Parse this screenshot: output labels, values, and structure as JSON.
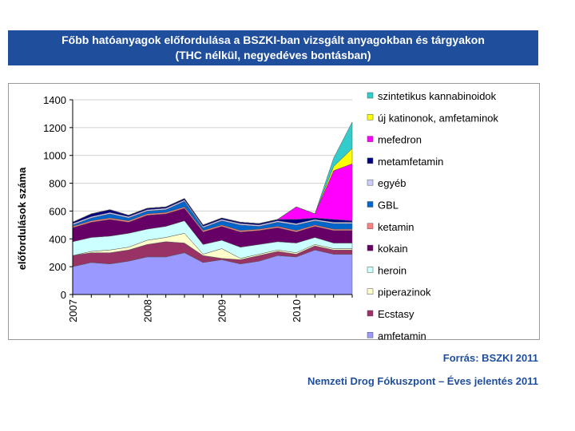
{
  "header": {
    "title_line1": "Főbb hatóanyagok előfordulása a BSZKI-ban vizsgált anyagokban és tárgyakon",
    "title_line2": "(THC nélkül, negyedéves bontásban)"
  },
  "footer": {
    "source_line1": "Forrás: BSZKI 2011",
    "source_line2": "Nemzeti Drog Fókuszpont – Éves jelentés 2011"
  },
  "chart_data": {
    "type": "area",
    "stacked": true,
    "title": "Főbb hatóanyagok előfordulása a BSZKI-ban vizsgált anyagokban és tárgyakon",
    "subtitle": "(THC nélkül, negyedéves bontásban)",
    "xlabel": "",
    "ylabel": "előfordulások száma",
    "ylim": [
      0,
      1400
    ],
    "yticks": [
      0,
      200,
      400,
      600,
      800,
      1000,
      1200,
      1400
    ],
    "x": [
      "2007 Q1",
      "2007 Q2",
      "2007 Q3",
      "2007 Q4",
      "2008 Q1",
      "2008 Q2",
      "2008 Q3",
      "2008 Q4",
      "2009 Q1",
      "2009 Q2",
      "2009 Q3",
      "2009 Q4",
      "2010 Q1",
      "2010 Q2",
      "2010 Q3",
      "2010 Q4"
    ],
    "year_labels": [
      {
        "label": "2007",
        "index": 0
      },
      {
        "label": "2008",
        "index": 4
      },
      {
        "label": "2009",
        "index": 8
      },
      {
        "label": "2010",
        "index": 12
      }
    ],
    "legend_position": "right",
    "series": [
      {
        "name": "amfetamin",
        "color": "#9999ff",
        "values": [
          200,
          230,
          220,
          240,
          270,
          270,
          300,
          230,
          250,
          220,
          240,
          280,
          270,
          320,
          290,
          290
        ]
      },
      {
        "name": "Ecstasy",
        "color": "#993366",
        "values": [
          80,
          70,
          80,
          80,
          90,
          110,
          70,
          50,
          10,
          30,
          40,
          30,
          20,
          30,
          30,
          30
        ]
      },
      {
        "name": "piperazinok",
        "color": "#ffffcc",
        "values": [
          0,
          10,
          20,
          20,
          30,
          30,
          70,
          10,
          70,
          10,
          10,
          10,
          10,
          10,
          10,
          10
        ]
      },
      {
        "name": "heroin",
        "color": "#ccffff",
        "values": [
          100,
          100,
          100,
          100,
          80,
          80,
          90,
          70,
          60,
          80,
          70,
          60,
          70,
          50,
          40,
          40
        ]
      },
      {
        "name": "kokain",
        "color": "#660066",
        "values": [
          100,
          110,
          120,
          80,
          100,
          90,
          90,
          90,
          100,
          110,
          100,
          100,
          80,
          80,
          90,
          90
        ]
      },
      {
        "name": "ketamin",
        "color": "#ff8080",
        "values": [
          10,
          10,
          10,
          10,
          10,
          10,
          10,
          10,
          10,
          10,
          10,
          10,
          10,
          10,
          10,
          10
        ]
      },
      {
        "name": "GBL",
        "color": "#0066cc",
        "values": [
          10,
          20,
          30,
          20,
          20,
          20,
          40,
          20,
          30,
          40,
          20,
          30,
          40,
          30,
          40,
          40
        ]
      },
      {
        "name": "egyéb",
        "color": "#ccccff",
        "values": [
          10,
          10,
          10,
          10,
          10,
          10,
          10,
          10,
          10,
          10,
          10,
          10,
          10,
          10,
          10,
          10
        ]
      },
      {
        "name": "metamfetamin",
        "color": "#000080",
        "values": [
          10,
          20,
          20,
          10,
          10,
          10,
          10,
          10,
          10,
          10,
          10,
          10,
          30,
          10,
          20,
          10
        ]
      },
      {
        "name": "mefedron",
        "color": "#ff00ff",
        "values": [
          0,
          0,
          0,
          0,
          0,
          0,
          0,
          0,
          0,
          0,
          0,
          0,
          90,
          30,
          350,
          410
        ]
      },
      {
        "name": "új katinonok, amfetaminok",
        "color": "#ffff00",
        "values": [
          0,
          0,
          0,
          0,
          0,
          0,
          0,
          0,
          0,
          0,
          0,
          0,
          0,
          0,
          30,
          110
        ]
      },
      {
        "name": "szintetikus kannabinoidok",
        "color": "#33cccc",
        "values": [
          0,
          0,
          0,
          0,
          0,
          0,
          0,
          0,
          0,
          0,
          0,
          0,
          0,
          0,
          60,
          190
        ]
      }
    ]
  }
}
